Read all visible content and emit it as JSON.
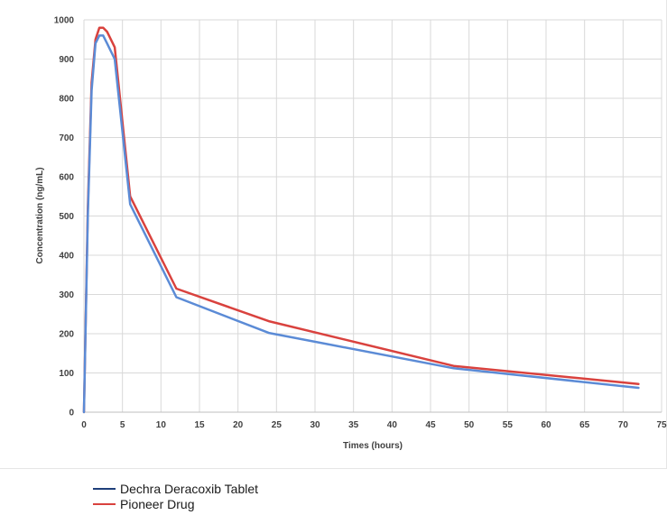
{
  "chart_data": {
    "type": "line",
    "xlabel": "Times (hours)",
    "ylabel": "Concentration (ng/mL)",
    "xlim": [
      0,
      75
    ],
    "ylim": [
      0,
      1000
    ],
    "xticks": [
      0,
      5,
      10,
      15,
      20,
      25,
      30,
      35,
      40,
      45,
      50,
      55,
      60,
      65,
      70,
      75
    ],
    "yticks": [
      0,
      100,
      200,
      300,
      400,
      500,
      600,
      700,
      800,
      900,
      1000
    ],
    "grid": true,
    "legend_position": "bottom-left",
    "series": [
      {
        "name": "Dechra Deracoxib Tablet",
        "color": "#1f3f7a",
        "line_color": "#5b8bd6",
        "x": [
          0,
          0.5,
          1,
          1.5,
          2,
          2.5,
          3,
          4,
          6,
          12,
          24,
          48,
          72
        ],
        "y": [
          0,
          500,
          820,
          940,
          960,
          960,
          940,
          900,
          530,
          293,
          202,
          112,
          62
        ]
      },
      {
        "name": "Pioneer Drug",
        "color": "#d9423e",
        "line_color": "#d9423e",
        "x": [
          0,
          0.5,
          1,
          1.5,
          2,
          2.5,
          3,
          4,
          6,
          12,
          24,
          48,
          72
        ],
        "y": [
          0,
          520,
          840,
          950,
          980,
          980,
          970,
          930,
          550,
          315,
          232,
          118,
          72
        ]
      }
    ]
  }
}
